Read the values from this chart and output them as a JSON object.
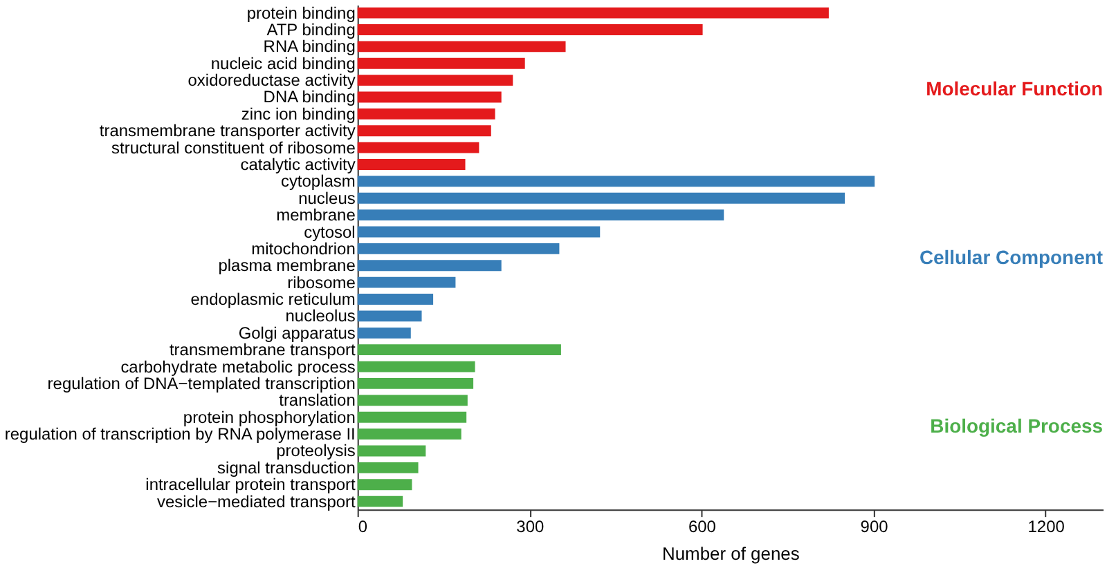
{
  "chart_data": {
    "type": "bar",
    "orientation": "horizontal",
    "xlabel": "Number of genes",
    "xlim": [
      0,
      1300
    ],
    "xticks": [
      0,
      300,
      600,
      900,
      1200
    ],
    "grid": false,
    "legend": false,
    "categories": [
      "protein binding",
      "ATP binding",
      "RNA binding",
      "nucleic acid binding",
      "oxidoreductase activity",
      "DNA binding",
      "zinc ion binding",
      "transmembrane transporter activity",
      "structural constituent of ribosome",
      "catalytic activity",
      "cytoplasm",
      "nucleus",
      "membrane",
      "cytosol",
      "mitochondrion",
      "plasma membrane",
      "ribosome",
      "endoplasmic reticulum",
      "nucleolus",
      "Golgi apparatus",
      "transmembrane transport",
      "carbohydrate metabolic process",
      "regulation of DNA−templated transcription",
      "translation",
      "protein phosphorylation",
      "regulation of transcription by RNA polymerase II",
      "proteolysis",
      "signal transduction",
      "intracellular protein transport",
      "vesicle−mediated transport"
    ],
    "series": [
      {
        "name": "Molecular Function",
        "color": "#e41a1c",
        "values": [
          822,
          602,
          363,
          292,
          271,
          251,
          240,
          233,
          212,
          188,
          null,
          null,
          null,
          null,
          null,
          null,
          null,
          null,
          null,
          null,
          null,
          null,
          null,
          null,
          null,
          null,
          null,
          null,
          null,
          null
        ]
      },
      {
        "name": "Cellular Component",
        "color": "#377eb8",
        "values": [
          null,
          null,
          null,
          null,
          null,
          null,
          null,
          null,
          null,
          null,
          902,
          850,
          639,
          423,
          352,
          251,
          171,
          132,
          112,
          93,
          null,
          null,
          null,
          null,
          null,
          null,
          null,
          null,
          null,
          null
        ]
      },
      {
        "name": "Biological Process",
        "color": "#4daf4a",
        "values": [
          null,
          null,
          null,
          null,
          null,
          null,
          null,
          null,
          null,
          null,
          null,
          null,
          null,
          null,
          null,
          null,
          null,
          null,
          null,
          null,
          355,
          205,
          202,
          192,
          190,
          181,
          119,
          106,
          95,
          79
        ]
      }
    ]
  }
}
